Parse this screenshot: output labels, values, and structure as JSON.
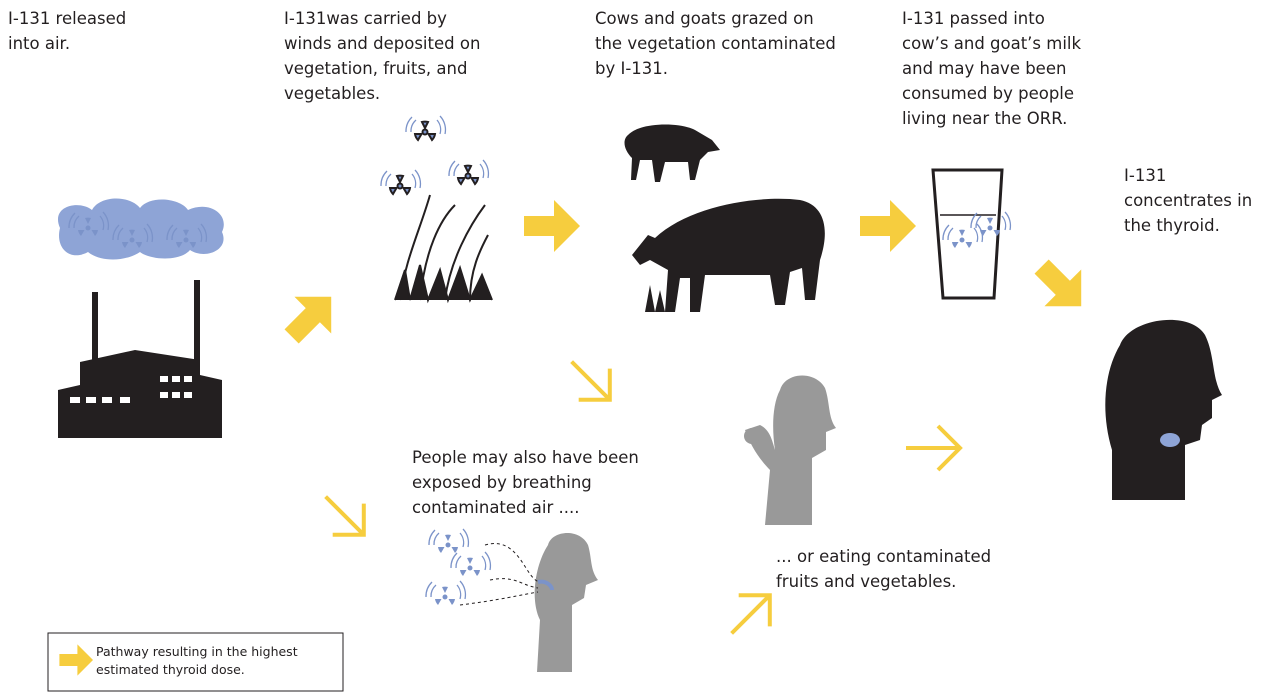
{
  "nodes": [
    {
      "lines": [
        "I-131 released",
        "into air."
      ]
    },
    {
      "lines": [
        "I-131was carried by",
        "winds and deposited on",
        "vegetation, fruits, and",
        "vegetables."
      ]
    },
    {
      "lines": [
        "Cows and goats grazed on",
        "the vegetation contaminated",
        "by I-131."
      ]
    },
    {
      "lines": [
        "I-131 passed into",
        "cow’s and goat’s milk",
        "and may have been",
        "consumed by people",
        "living near the ORR."
      ]
    },
    {
      "lines": [
        "I-131",
        "concentrates in",
        "the thyroid."
      ]
    },
    {
      "lines": [
        "People may also have been",
        "exposed by breathing",
        "contaminated air ...."
      ]
    },
    {
      "lines": [
        "... or eating contaminated",
        "fruits and vegetables."
      ]
    }
  ],
  "legend": {
    "lines": [
      "Pathway resulting in the highest",
      "estimated thyroid dose."
    ]
  }
}
